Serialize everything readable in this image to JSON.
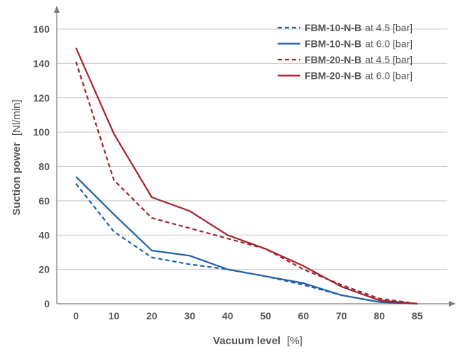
{
  "chart_data": {
    "type": "line",
    "x_categories": [
      "0",
      "10",
      "20",
      "30",
      "40",
      "50",
      "60",
      "70",
      "80",
      "85"
    ],
    "xlabel_bold": "Vacuum level",
    "xlabel_unit": "[%]",
    "ylabel_bold": "Suction power",
    "ylabel_unit": "[Nl/min]",
    "ylim": [
      0,
      170
    ],
    "yticks": [
      "0",
      "20",
      "40",
      "60",
      "80",
      "100",
      "120",
      "140",
      "160"
    ],
    "ytick_values": [
      0,
      20,
      40,
      60,
      80,
      100,
      120,
      140,
      160
    ],
    "grid": "horizontal",
    "legend_position": "top-right",
    "series": [
      {
        "model": "FBM-10-N-B",
        "suffix": "at 4.5 [bar]",
        "color": "#1f5fa8",
        "dashed": true,
        "values": [
          70,
          42,
          27,
          23,
          20,
          16,
          11,
          5,
          1,
          0
        ]
      },
      {
        "model": "FBM-10-N-B",
        "suffix": "at 6.0 [bar]",
        "color": "#1f5fa8",
        "dashed": false,
        "values": [
          74,
          52,
          31,
          28,
          20,
          16,
          12,
          5,
          1,
          0
        ]
      },
      {
        "model": "FBM-20-N-B",
        "suffix": "at 4.5 [bar]",
        "color": "#a3232c",
        "dashed": true,
        "values": [
          141,
          72,
          50,
          44,
          38,
          32,
          20,
          11,
          3,
          0
        ]
      },
      {
        "model": "FBM-20-N-B",
        "suffix": "at 6.0 [bar]",
        "color": "#a3232c",
        "dashed": false,
        "values": [
          149,
          99,
          62,
          54,
          40,
          32,
          22,
          10,
          2,
          0
        ]
      }
    ]
  }
}
